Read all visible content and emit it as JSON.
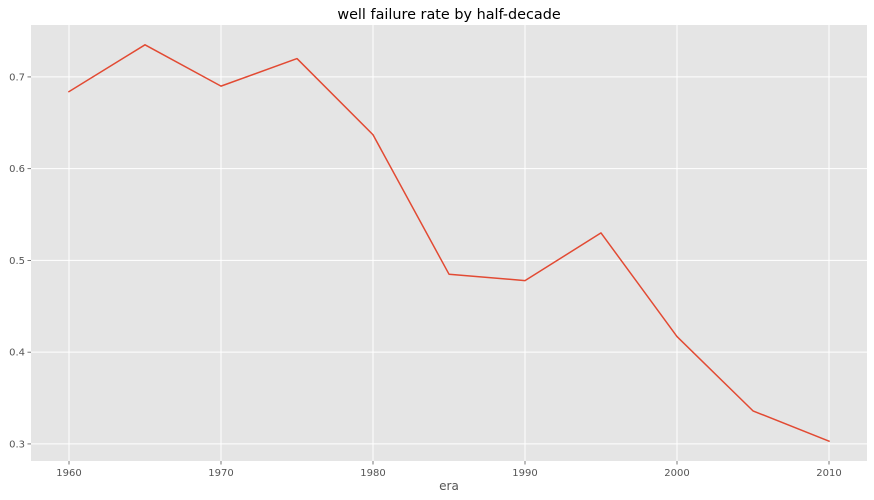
{
  "chart_data": {
    "type": "line",
    "title": "well failure rate by half-decade",
    "xlabel": "era",
    "ylabel": "",
    "x": [
      1960,
      1965,
      1970,
      1975,
      1980,
      1985,
      1990,
      1995,
      2000,
      2005,
      2010
    ],
    "series": [
      {
        "values": [
          0.684,
          0.735,
          0.69,
          0.72,
          0.637,
          0.485,
          0.478,
          0.53,
          0.417,
          0.336,
          0.303
        ],
        "color": "#E24A33"
      }
    ],
    "xticks": [
      1960,
      1970,
      1980,
      1990,
      2000,
      2010
    ],
    "yticks": [
      0.3,
      0.4,
      0.5,
      0.6,
      0.7
    ],
    "xlim": [
      1957.5,
      2012.5
    ],
    "ylim": [
      0.2814,
      0.7566
    ],
    "grid": true,
    "style": {
      "plot_bg": "#E5E5E5",
      "grid_color": "#FFFFFF",
      "tick_color": "#555555"
    }
  }
}
